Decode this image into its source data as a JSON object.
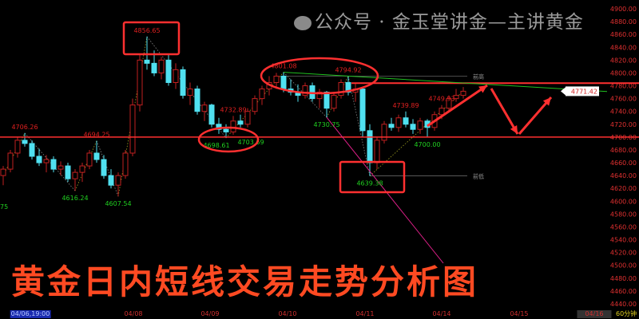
{
  "watermark": "公众号 · 金玉堂讲金—主讲黄金",
  "overlay_title": "黄金日内短线交易走势分析图",
  "period": "60分钟",
  "colors": {
    "up": "#c02020",
    "down": "#50e0f0",
    "axis_text": "#e03030",
    "annotation": "#ff3030",
    "trendline": "#20c020",
    "label_high": "#e02020",
    "label_low": "#20d020"
  },
  "chart_data": {
    "type": "candlestick",
    "title": "",
    "ylim": [
      4440,
      4900
    ],
    "y_ticks": [
      4900,
      4880,
      4860,
      4840,
      4820,
      4800,
      4780,
      4760,
      4740,
      4720,
      4700,
      4680,
      4660,
      4640,
      4620,
      4600,
      4580,
      4560,
      4540,
      4520,
      4500,
      4480,
      4460,
      4440
    ],
    "y_tick_labels": [
      "4900.00",
      "4880.00",
      "4860.00",
      "4840.00",
      "4820.00",
      "4800.00",
      "4780.00",
      "4760.00",
      "4740.00",
      "4720.00",
      "4700.00",
      "4680.00",
      "4660.00",
      "4640.00",
      "4620.00",
      "4600.00",
      "4580.00",
      "4560.00",
      "4540.00",
      "4520.00",
      "4500.00",
      "4480.00",
      "4460.00",
      "4440.00"
    ],
    "x_labels": [
      "04/06,19:00",
      "04/08",
      "04/09",
      "04/10",
      "04/11",
      "04/14",
      "04/15",
      "04/16"
    ],
    "last_price": "4771.42",
    "ohlc": [
      [
        4640,
        4655,
        4625,
        4650
      ],
      [
        4650,
        4680,
        4645,
        4675
      ],
      [
        4675,
        4700,
        4668,
        4695
      ],
      [
        4695,
        4706.26,
        4685,
        4690
      ],
      [
        4690,
        4695,
        4665,
        4670
      ],
      [
        4670,
        4682,
        4655,
        4660
      ],
      [
        4660,
        4672,
        4645,
        4665
      ],
      [
        4665,
        4670,
        4645,
        4650
      ],
      [
        4650,
        4662,
        4640,
        4655
      ],
      [
        4655,
        4660,
        4630,
        4635
      ],
      [
        4635,
        4650,
        4616.24,
        4645
      ],
      [
        4645,
        4660,
        4630,
        4655
      ],
      [
        4655,
        4680,
        4650,
        4675
      ],
      [
        4675,
        4694.25,
        4660,
        4665
      ],
      [
        4665,
        4672,
        4635,
        4640
      ],
      [
        4640,
        4650,
        4620,
        4625
      ],
      [
        4625,
        4645,
        4607.54,
        4640
      ],
      [
        4640,
        4680,
        4635,
        4675
      ],
      [
        4675,
        4760,
        4670,
        4750
      ],
      [
        4750,
        4830,
        4740,
        4820
      ],
      [
        4820,
        4856.65,
        4805,
        4815
      ],
      [
        4815,
        4835,
        4795,
        4800
      ],
      [
        4800,
        4825,
        4790,
        4820
      ],
      [
        4820,
        4830,
        4780,
        4785
      ],
      [
        4785,
        4815,
        4775,
        4805
      ],
      [
        4805,
        4810,
        4760,
        4765
      ],
      [
        4765,
        4785,
        4750,
        4775
      ],
      [
        4775,
        4780,
        4735,
        4740
      ],
      [
        4740,
        4755,
        4725,
        4750
      ],
      [
        4750,
        4752,
        4715,
        4720
      ],
      [
        4720,
        4730,
        4705,
        4712
      ],
      [
        4712,
        4720,
        4698.61,
        4708
      ],
      [
        4708,
        4732.89,
        4703.69,
        4725
      ],
      [
        4725,
        4735,
        4715,
        4720
      ],
      [
        4720,
        4745,
        4715,
        4740
      ],
      [
        4740,
        4765,
        4735,
        4760
      ],
      [
        4760,
        4780,
        4750,
        4775
      ],
      [
        4775,
        4795,
        4765,
        4785
      ],
      [
        4785,
        4800,
        4775,
        4795
      ],
      [
        4795,
        4801.08,
        4770,
        4775
      ],
      [
        4775,
        4790,
        4765,
        4770
      ],
      [
        4770,
        4782,
        4755,
        4765
      ],
      [
        4765,
        4785,
        4760,
        4780
      ],
      [
        4780,
        4785,
        4755,
        4760
      ],
      [
        4760,
        4775,
        4745,
        4770
      ],
      [
        4770,
        4772,
        4730.75,
        4745
      ],
      [
        4745,
        4770,
        4740,
        4765
      ],
      [
        4765,
        4790,
        4760,
        4785
      ],
      [
        4785,
        4794.92,
        4765,
        4770
      ],
      [
        4770,
        4785,
        4755,
        4775
      ],
      [
        4775,
        4778,
        4700,
        4710
      ],
      [
        4710,
        4720,
        4639.38,
        4660
      ],
      [
        4660,
        4700,
        4650,
        4695
      ],
      [
        4695,
        4725,
        4690,
        4720
      ],
      [
        4720,
        4730,
        4710,
        4715
      ],
      [
        4715,
        4735,
        4708,
        4730
      ],
      [
        4730,
        4739.89,
        4715,
        4720
      ],
      [
        4720,
        4728,
        4705,
        4712
      ],
      [
        4712,
        4730,
        4705,
        4725
      ],
      [
        4725,
        4728,
        4700,
        4715
      ],
      [
        4715,
        4740,
        4710,
        4735
      ],
      [
        4735,
        4749.93,
        4728,
        4745
      ],
      [
        4745,
        4765,
        4740,
        4760
      ],
      [
        4760,
        4775,
        4755,
        4765
      ],
      [
        4765,
        4778,
        4760,
        4771.42
      ]
    ],
    "pivots": [
      {
        "index": 3,
        "value": "4706.26",
        "type": "high"
      },
      {
        "index": 10,
        "value": "4616.24",
        "type": "low"
      },
      {
        "index": 13,
        "value": "4694.25",
        "type": "high"
      },
      {
        "index": 16,
        "value": "4607.54",
        "type": "low"
      },
      {
        "index": 20,
        "value": "4856.65",
        "type": "high"
      },
      {
        "index": 31,
        "value": "4698.61",
        "type": "low"
      },
      {
        "index": 32,
        "value": "4732.89",
        "type": "high"
      },
      {
        "index": 32,
        "value": "4703.69",
        "type": "low"
      },
      {
        "index": 39,
        "value": "4801.08",
        "type": "high"
      },
      {
        "index": 45,
        "value": "4730.75",
        "type": "low"
      },
      {
        "index": 48,
        "value": "4794.92",
        "type": "high"
      },
      {
        "index": 51,
        "value": "4639.38",
        "type": "low"
      },
      {
        "index": 56,
        "value": "4739.89",
        "type": "high"
      },
      {
        "index": 59,
        "value": "4700.00",
        "type": "low"
      },
      {
        "index": 61,
        "value": "4749.93",
        "type": "high"
      }
    ],
    "cut_label": "75",
    "ref_lines": [
      {
        "label": "前高",
        "value": 4795
      },
      {
        "label": "前低",
        "value": 4639.38
      }
    ],
    "horizontal_lines": [
      4784,
      4700
    ]
  }
}
